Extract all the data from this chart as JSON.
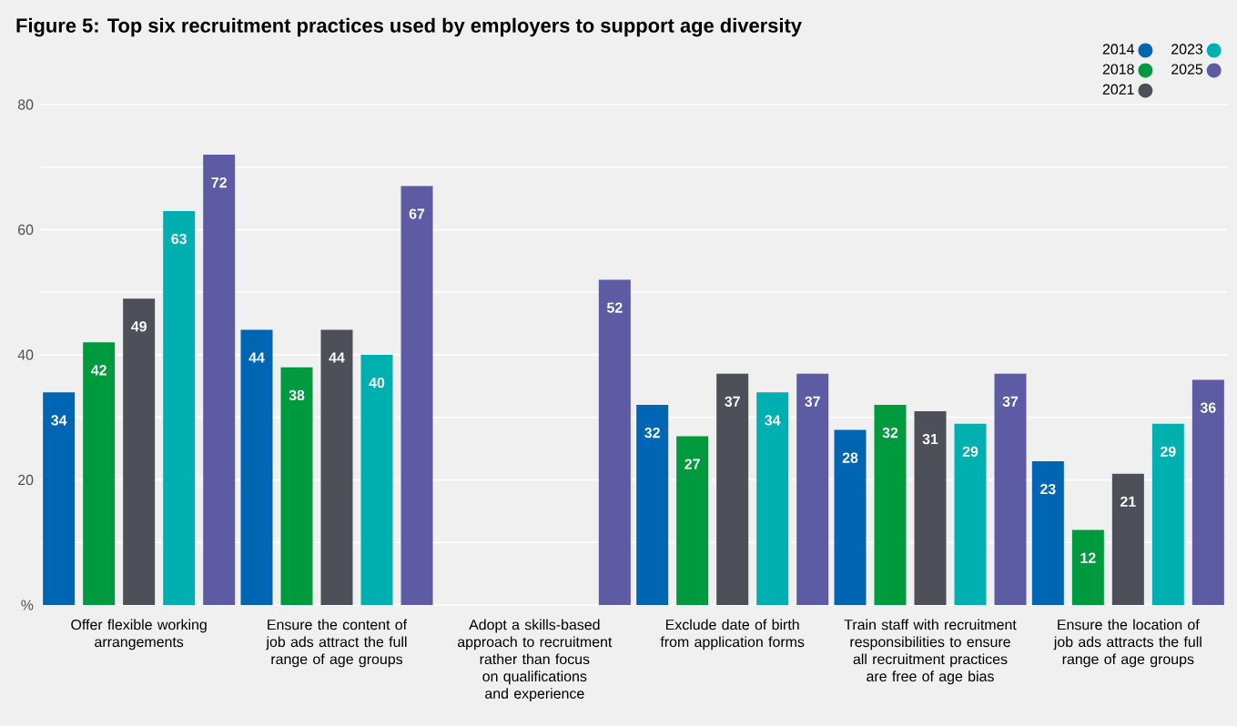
{
  "chart_data": {
    "type": "bar",
    "title": "Figure 5:  Top six recruitment practices used by employers to support age diversity",
    "categories": [
      "Offer flexible working arrangements",
      "Ensure the content of job ads attract the full range of age groups",
      "Adopt a skills-based approach to recruitment rather than focus on qualifications and experience",
      "Exclude date of birth from application forms",
      "Train staff with recruitment responsibilities to ensure all recruitment practices are free of age bias",
      "Ensure the location of job ads attracts the full range of age groups"
    ],
    "series": [
      {
        "name": "2014",
        "color": "#0066b3",
        "values": [
          34,
          44,
          null,
          32,
          28,
          23
        ]
      },
      {
        "name": "2018",
        "color": "#009a3e",
        "values": [
          42,
          38,
          null,
          27,
          32,
          12
        ]
      },
      {
        "name": "2021",
        "color": "#4d5058",
        "values": [
          49,
          44,
          null,
          37,
          31,
          21
        ]
      },
      {
        "name": "2023",
        "color": "#00b0b0",
        "values": [
          63,
          40,
          null,
          34,
          29,
          29
        ]
      },
      {
        "name": "2025",
        "color": "#5e5ba5",
        "values": [
          72,
          67,
          52,
          37,
          37,
          36
        ]
      }
    ],
    "ylim": [
      0,
      80
    ],
    "yticks": [
      {
        "value": 0,
        "label": "%"
      },
      {
        "value": 10,
        "label": null
      },
      20,
      {
        "value": 30,
        "label": null
      },
      40,
      {
        "value": 50,
        "label": null
      },
      60,
      {
        "value": 70,
        "label": null
      },
      80
    ],
    "grid": "y",
    "legend": "top right",
    "data_labels": true
  }
}
